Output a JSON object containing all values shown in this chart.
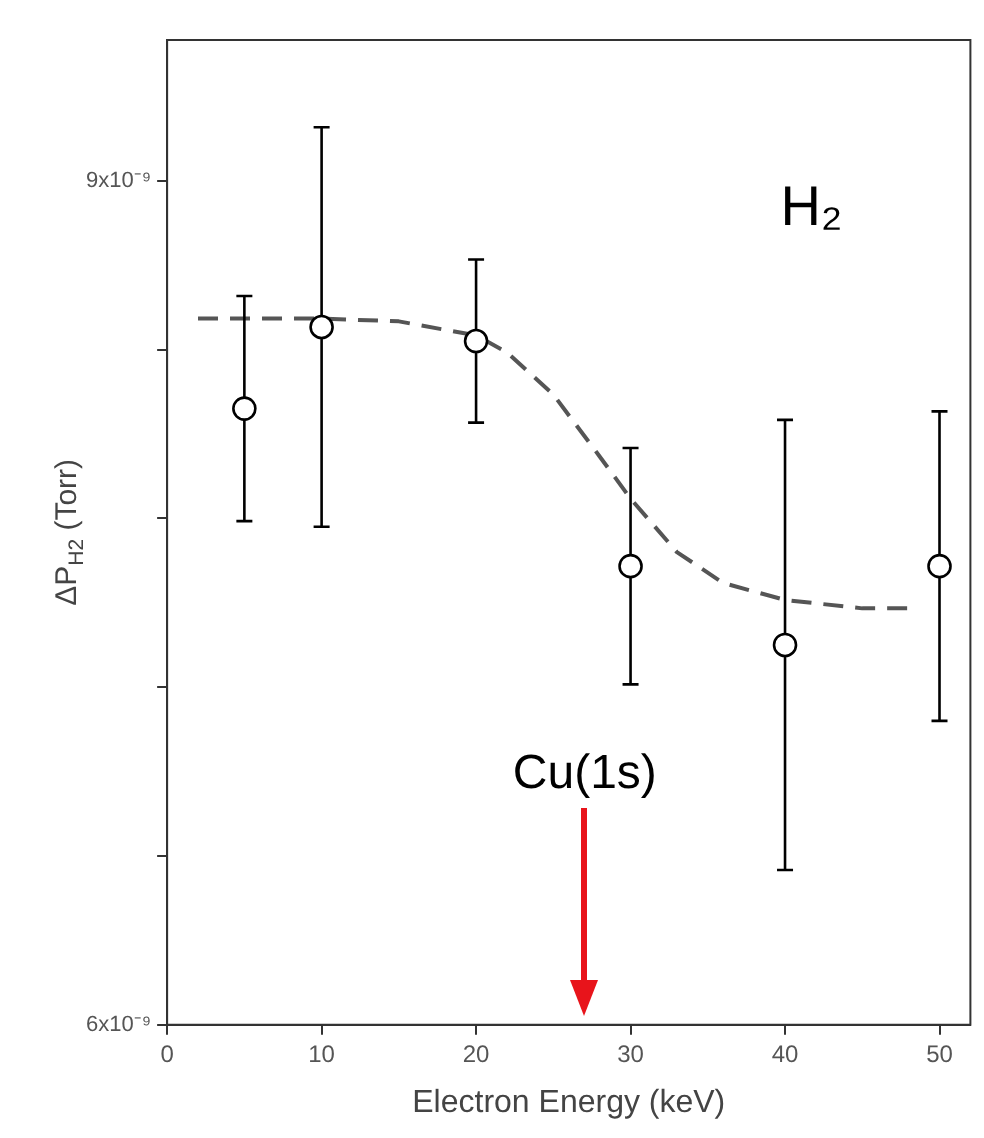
{
  "chart_data": {
    "type": "scatter",
    "xlabel": "Electron Energy (keV)",
    "ylabel": "ΔP$_{H2}$ (Torr)",
    "xlim": [
      0,
      52
    ],
    "xticks": [
      0,
      10,
      20,
      30,
      40,
      50
    ],
    "ylim": [
      6e-09,
      9.5e-09
    ],
    "yticks": [
      {
        "value": 6e-09,
        "label": "6x10⁻⁹"
      },
      {
        "value": 6.6e-09,
        "label": null
      },
      {
        "value": 7.2e-09,
        "label": null
      },
      {
        "value": 7.8e-09,
        "label": null
      },
      {
        "value": 8.4e-09,
        "label": null
      },
      {
        "value": 9e-09,
        "label": "9x10⁻⁹"
      }
    ],
    "grid": false,
    "legend": false,
    "series": [
      {
        "type": "scatter",
        "marker": "circle",
        "color": "#000000",
        "x": [
          5,
          10,
          20,
          30,
          40,
          50
        ],
        "values": [
          8.19e-09,
          8.48e-09,
          8.43e-09,
          7.63e-09,
          7.35e-09,
          7.63e-09
        ],
        "errors": [
          4e-10,
          7.1e-10,
          2.9e-10,
          4.2e-10,
          8e-10,
          5.5e-10
        ]
      },
      {
        "type": "line",
        "line_style": "dashed",
        "color": "#555555",
        "x": [
          2,
          10,
          15,
          20,
          22,
          25,
          28,
          30,
          33,
          36,
          40,
          45,
          48
        ],
        "values": [
          8.51e-09,
          8.51e-09,
          8.5e-09,
          8.45e-09,
          8.39e-09,
          8.24e-09,
          8.02e-09,
          7.87e-09,
          7.68e-09,
          7.57e-09,
          7.51e-09,
          7.48e-09,
          7.48e-09
        ]
      }
    ],
    "annotations": [
      "H₂",
      "Cu(1s)"
    ]
  }
}
